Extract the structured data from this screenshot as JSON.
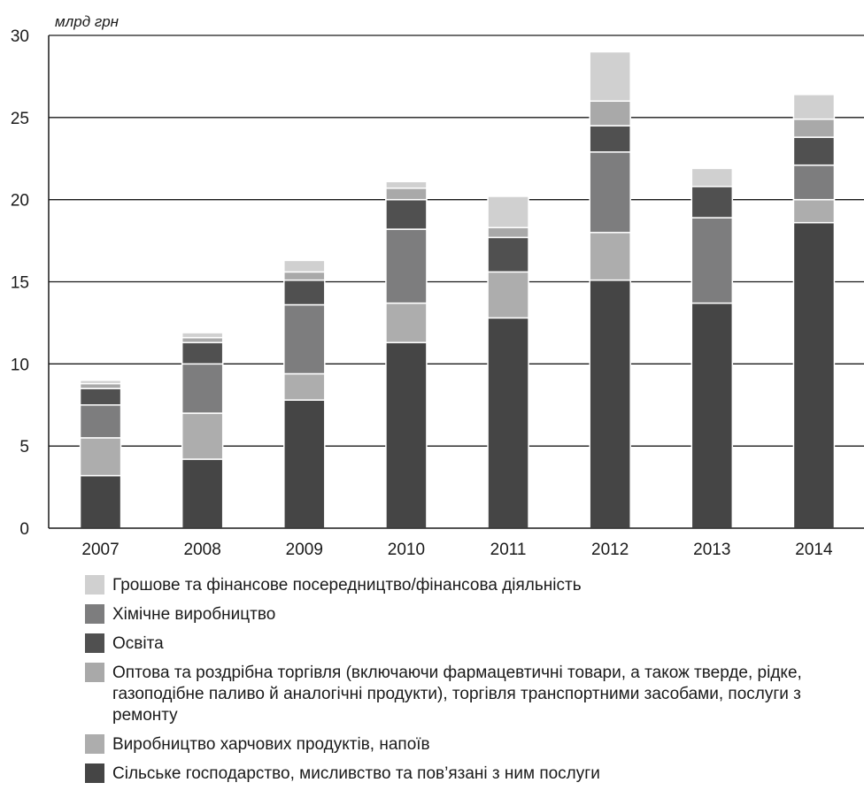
{
  "chart_data": {
    "type": "bar",
    "stacked": true,
    "ylabel": "млрд грн",
    "ylim": [
      0,
      30
    ],
    "yticks": [
      0,
      5,
      10,
      15,
      20,
      25,
      30
    ],
    "grid": true,
    "categories": [
      "2007",
      "2008",
      "2009",
      "2010",
      "2011",
      "2012",
      "2013",
      "2014"
    ],
    "series": [
      {
        "name": "Сільське господарство, мисливство та пов’язані з ним послуги",
        "color": "#454545",
        "values": [
          3.2,
          4.2,
          7.8,
          11.3,
          12.8,
          15.1,
          13.7,
          18.6
        ]
      },
      {
        "name": "Виробництво харчових продуктів, напоїв",
        "color": "#adadad",
        "values": [
          2.3,
          2.8,
          1.6,
          2.4,
          2.8,
          2.9,
          0,
          1.4
        ]
      },
      {
        "name": "Хімічне виробництво",
        "color": "#7d7d7e",
        "values": [
          2.0,
          3.0,
          4.2,
          4.5,
          0,
          4.9,
          5.2,
          2.1
        ]
      },
      {
        "name": "Освіта",
        "color": "#505050",
        "values": [
          1.0,
          1.3,
          1.5,
          1.8,
          2.1,
          1.6,
          1.9,
          1.7
        ]
      },
      {
        "name": "Оптова та роздрібна торгівля (включаючи фармацевтичні товари, а також тверде, рідке, газоподібне паливо й аналогічні продукти), торгівля транспортними засобами, послуги з ремонту",
        "color": "#a9a9a9",
        "values": [
          0.3,
          0.3,
          0.5,
          0.7,
          0.6,
          1.5,
          0,
          1.1
        ]
      },
      {
        "name": "Грошове та фінансове посередництво/фінансова діяльність",
        "color": "#d0d0d0",
        "values": [
          0.2,
          0.3,
          0.7,
          0.4,
          1.9,
          3.0,
          1.1,
          1.5
        ]
      }
    ]
  },
  "legend": {
    "items": [
      {
        "label": "Грошове та фінансове посередництво/фінансова діяльність",
        "color": "#d0d0d0"
      },
      {
        "label": "Хімічне виробництво",
        "color": "#7d7d7e"
      },
      {
        "label": "Освіта",
        "color": "#505050"
      },
      {
        "label": "Оптова та роздрібна торгівля (включаючи фармацевтичні товари, а також тверде, рідке, газоподібне паливо й аналогічні продукти), торгівля транспортними засобами, послуги з ремонту",
        "color": "#a9a9a9"
      },
      {
        "label": "Виробництво харчових продуктів, напоїв",
        "color": "#adadad"
      },
      {
        "label": "Сільське господарство, мисливство та пов’язані з ним послуги",
        "color": "#454545"
      }
    ]
  }
}
